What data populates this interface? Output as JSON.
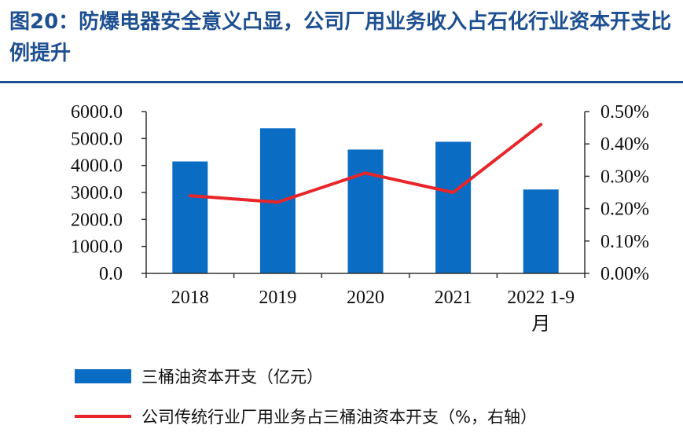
{
  "figure": {
    "title": "图20：防爆电器安全意义凸显，公司厂用业务收入占石化行业资本开支比例提升"
  },
  "chart_data": {
    "type": "bar+line",
    "categories": [
      "2018",
      "2019",
      "2020",
      "2021",
      "2022 1-9月"
    ],
    "category_lines": [
      [
        "2018"
      ],
      [
        "2019"
      ],
      [
        "2020"
      ],
      [
        "2021"
      ],
      [
        "2022 1-9",
        "月"
      ]
    ],
    "series": [
      {
        "name": "三桶油资本开支（亿元）",
        "type": "bar",
        "axis": "left",
        "color": "#0a6cc2",
        "values": [
          4150,
          5380,
          4590,
          4880,
          3110
        ]
      },
      {
        "name": "公司传统行业厂用业务占三桶油资本开支（%，右轴）",
        "type": "line",
        "axis": "right",
        "color": "#e8262a",
        "values": [
          0.24,
          0.22,
          0.31,
          0.25,
          0.46
        ]
      }
    ],
    "y_left": {
      "range": [
        0,
        6000
      ],
      "ticks": [
        "0.0",
        "1000.0",
        "2000.0",
        "3000.0",
        "4000.0",
        "5000.0",
        "6000.0"
      ]
    },
    "y_right": {
      "range": [
        0,
        0.5
      ],
      "ticks": [
        "0.00%",
        "0.10%",
        "0.20%",
        "0.30%",
        "0.40%",
        "0.50%"
      ]
    },
    "grid": false,
    "legend_position": "bottom"
  }
}
